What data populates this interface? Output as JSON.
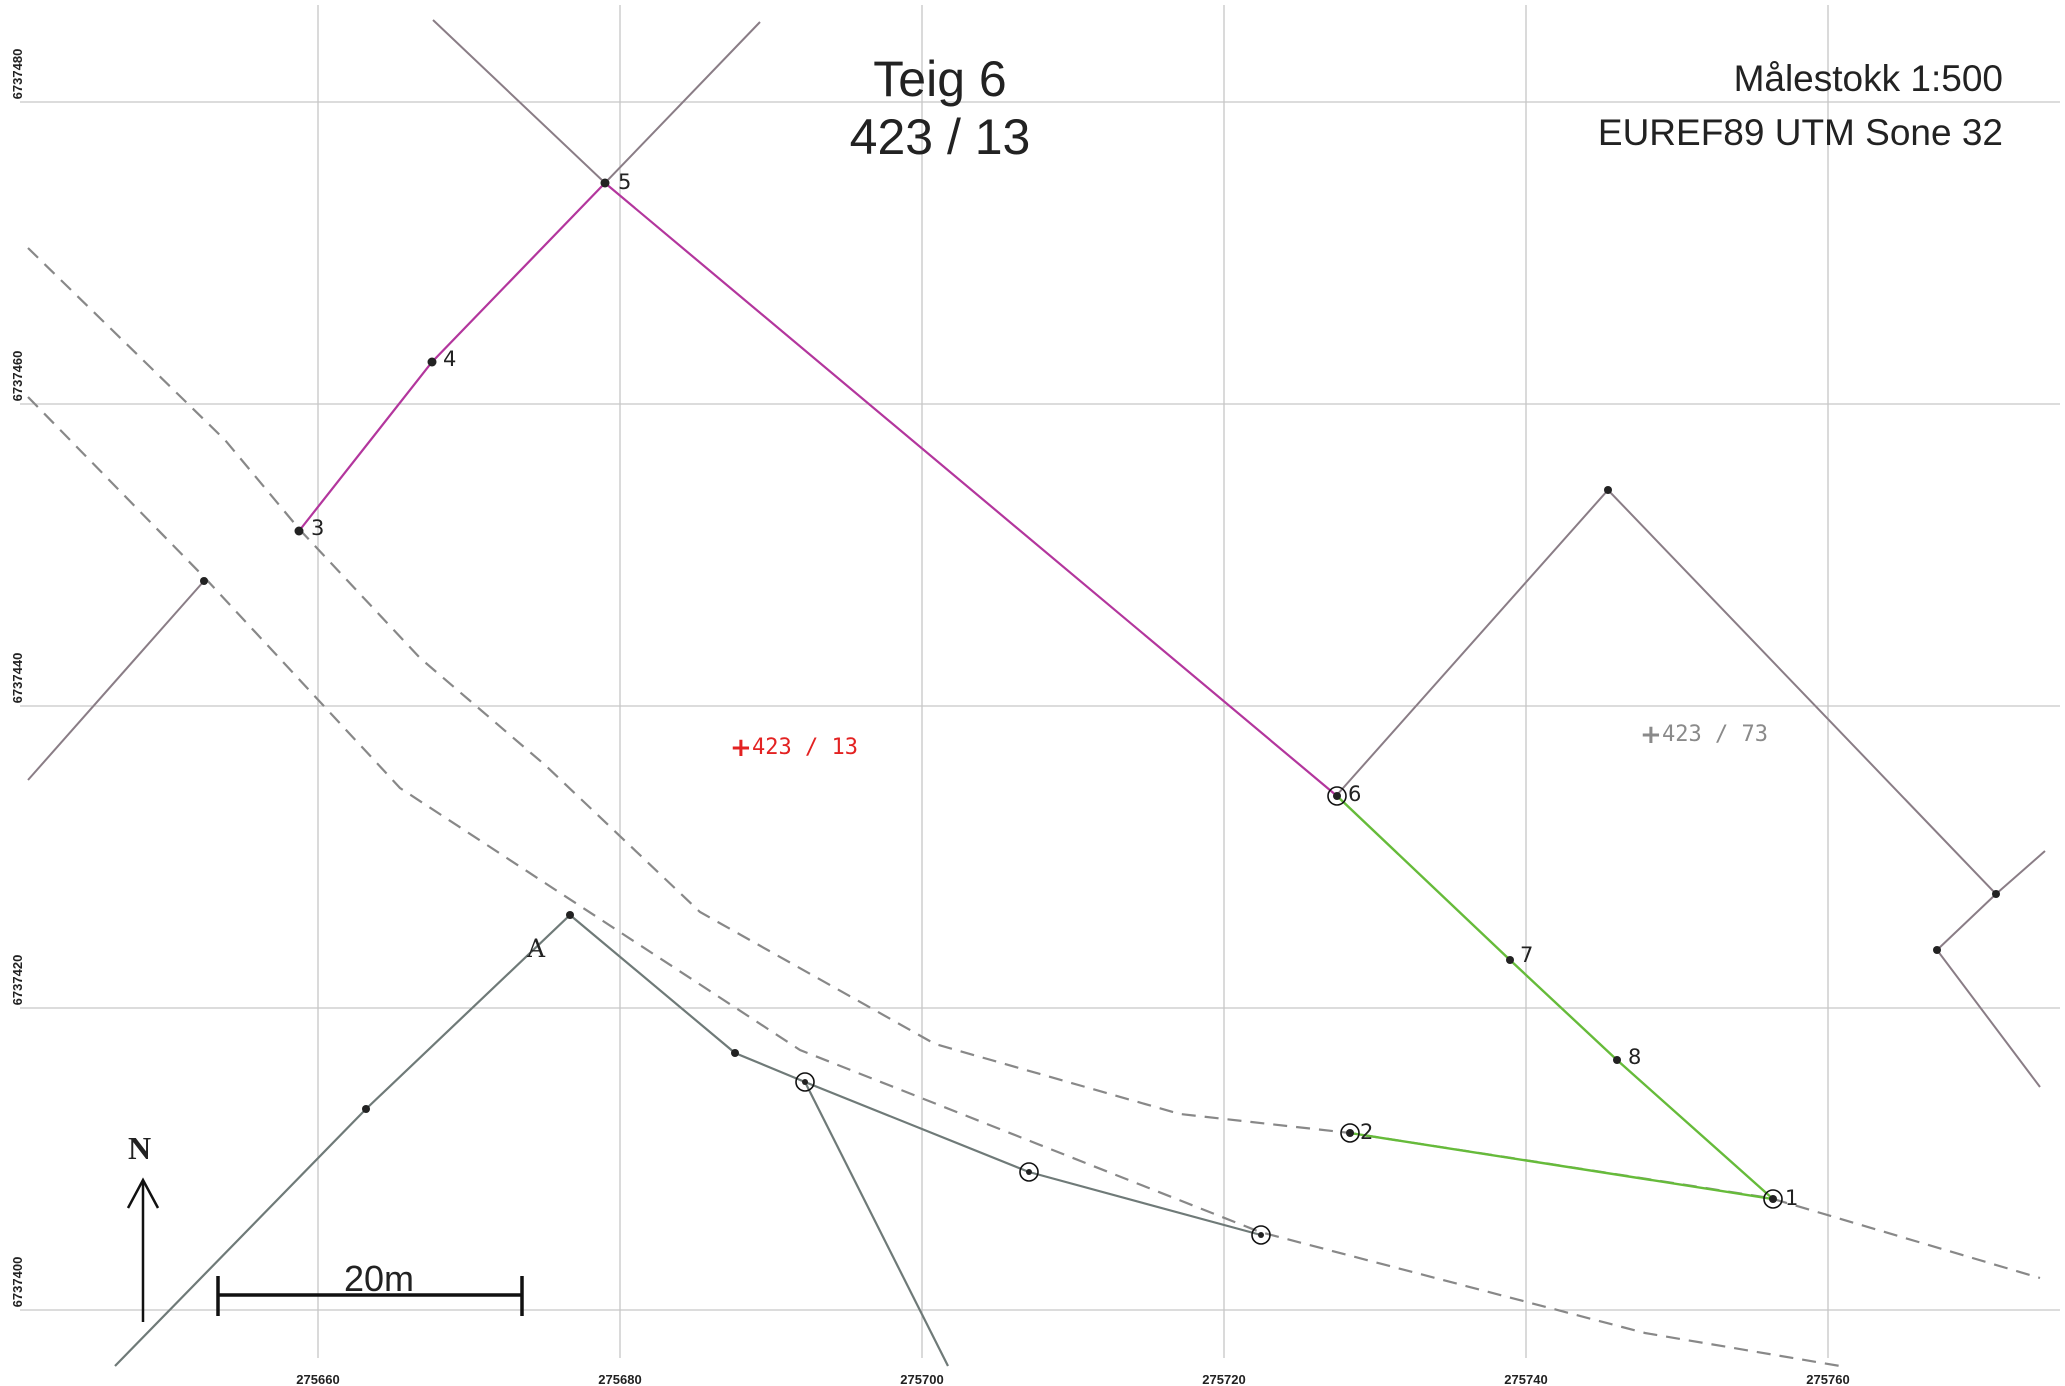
{
  "title": {
    "line1": "Teig 6",
    "line2": "423 / 13"
  },
  "info": {
    "scale": "Målestokk 1:500",
    "crs": "EUREF89 UTM Sone 32"
  },
  "north_label": "N",
  "scale_bar_label": "20m",
  "grid": {
    "x_labels": [
      "275660",
      "275680",
      "275700",
      "275720",
      "275740",
      "275760"
    ],
    "y_labels": [
      "6737480",
      "6737460",
      "6737440",
      "6737420",
      "6737400"
    ]
  },
  "parcels": {
    "main_label": "423 / 13",
    "neighbor_label": "423 / 73"
  },
  "point_labels": [
    "1",
    "2",
    "3",
    "4",
    "5",
    "6",
    "7",
    "8",
    "A"
  ],
  "colors": {
    "grid": "#c6c6c6",
    "boundary_purple": "#b3369d",
    "boundary_green": "#66bb3a",
    "neighbor_boundary": "#8a7d86",
    "road_line": "#6f7a78",
    "dashed_edge": "#888888",
    "main_label": "#e32222",
    "neighbor_label": "#8a8a8a",
    "text": "#222222"
  }
}
